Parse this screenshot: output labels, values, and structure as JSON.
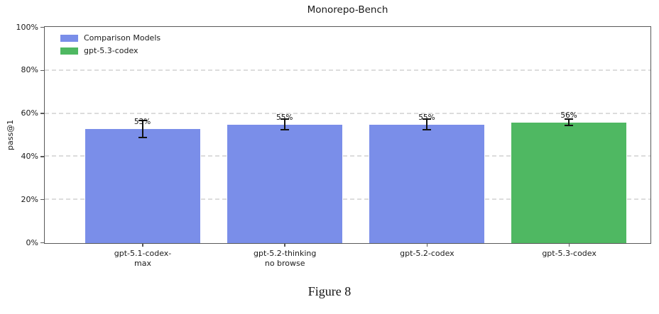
{
  "figure": {
    "caption": "Figure 8"
  },
  "chart_data": {
    "type": "bar",
    "title": "Monorepo-Bench",
    "xlabel": "",
    "ylabel": "pass@1",
    "ylim": [
      0,
      100
    ],
    "yticks": [
      0,
      20,
      40,
      60,
      80,
      100
    ],
    "ytick_labels": [
      "0%",
      "20%",
      "40%",
      "60%",
      "80%",
      "100%"
    ],
    "grid": {
      "axis": "y",
      "style": "dashed",
      "color": "#dcdcdc"
    },
    "legend": {
      "position": "upper-left",
      "entries": [
        {
          "label": "Comparison Models",
          "color": "#7a8ee9"
        },
        {
          "label": "gpt-5.3-codex",
          "color": "#4fb862"
        }
      ]
    },
    "bars": [
      {
        "category_lines": [
          "gpt-5.1-codex-",
          "max"
        ],
        "value": 53,
        "label": "53%",
        "error": 4,
        "color": "#7a8ee9"
      },
      {
        "category_lines": [
          "gpt-5.2-thinking",
          "no browse"
        ],
        "value": 55,
        "label": "55%",
        "error": 2.5,
        "color": "#7a8ee9"
      },
      {
        "category_lines": [
          "gpt-5.2-codex"
        ],
        "value": 55,
        "label": "55%",
        "error": 2.5,
        "color": "#7a8ee9"
      },
      {
        "category_lines": [
          "gpt-5.3-codex"
        ],
        "value": 56,
        "label": "56%",
        "error": 1.5,
        "color": "#4fb862"
      }
    ]
  }
}
